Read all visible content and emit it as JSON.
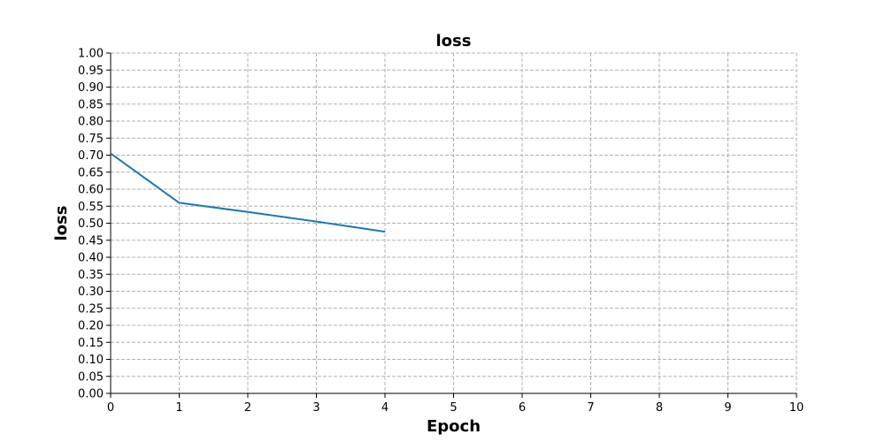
{
  "chart_data": {
    "type": "line",
    "title": "loss",
    "xlabel": "Epoch",
    "ylabel": "loss",
    "xlim": [
      0,
      10
    ],
    "ylim": [
      0,
      1
    ],
    "xticks": [
      "0",
      "1",
      "2",
      "3",
      "4",
      "5",
      "6",
      "7",
      "8",
      "9",
      "10"
    ],
    "yticks": [
      "0.00",
      "0.05",
      "0.10",
      "0.15",
      "0.20",
      "0.25",
      "0.30",
      "0.35",
      "0.40",
      "0.45",
      "0.50",
      "0.55",
      "0.60",
      "0.65",
      "0.70",
      "0.75",
      "0.80",
      "0.85",
      "0.90",
      "0.95",
      "1.00"
    ],
    "grid": true,
    "series": [
      {
        "color": "#1f77b4",
        "x": [
          0,
          1,
          2,
          3,
          4
        ],
        "values": [
          0.705,
          0.56,
          0.533,
          0.505,
          0.475
        ]
      }
    ]
  }
}
